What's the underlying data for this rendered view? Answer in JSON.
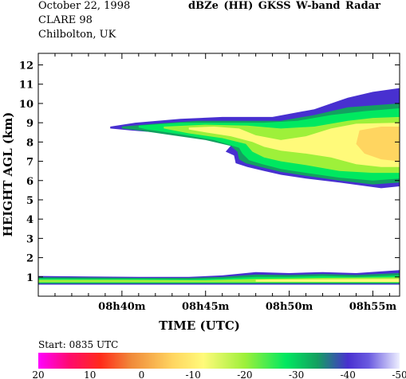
{
  "header": {
    "date": "October 22, 1998",
    "campaign": "CLARE 98",
    "site": "Chilbolton, UK",
    "title": "dBZe (HH)  GKSS  W-band Radar"
  },
  "start_label": "Start: 0835 UTC",
  "chart_data": {
    "type": "heatmap",
    "title": "dBZe (HH)  GKSS  W-band Radar",
    "xlabel": "TIME (UTC)",
    "ylabel": "HEIGHT AGL (km)",
    "x_unit": "minutes",
    "xlim": [
      35.0,
      56.6
    ],
    "ylim": [
      0,
      12.6
    ],
    "x_ticks": [
      {
        "value": 40,
        "label": "08h40m"
      },
      {
        "value": 45,
        "label": "08h45m"
      },
      {
        "value": 50,
        "label": "08h50m"
      },
      {
        "value": 55,
        "label": "08h55m"
      }
    ],
    "y_ticks": [
      1,
      2,
      3,
      4,
      5,
      6,
      7,
      8,
      9,
      10,
      11,
      12
    ],
    "grid": false,
    "colorbar": {
      "ticks": [
        20,
        10,
        0,
        -10,
        -20,
        -30,
        -40,
        -50
      ],
      "range": [
        20,
        -50
      ],
      "stops": [
        {
          "value": 20,
          "color": "#ff00ff"
        },
        {
          "value": 14,
          "color": "#ff0a6e"
        },
        {
          "value": 8,
          "color": "#ff2a1a"
        },
        {
          "value": 2,
          "color": "#f08a3a"
        },
        {
          "value": -6,
          "color": "#ffd560"
        },
        {
          "value": -12,
          "color": "#fffa7a"
        },
        {
          "value": -20,
          "color": "#9ef03a"
        },
        {
          "value": -28,
          "color": "#00e860"
        },
        {
          "value": -34,
          "color": "#13a060"
        },
        {
          "value": -40,
          "color": "#4830d0"
        },
        {
          "value": -44,
          "color": "#6a5ae0"
        },
        {
          "value": -50,
          "color": "#eef0ff"
        }
      ]
    },
    "regions": [
      {
        "name": "upper-cloud",
        "color": "#4830d0",
        "points": [
          [
            39.3,
            8.8
          ],
          [
            40.8,
            9.0
          ],
          [
            43.5,
            9.2
          ],
          [
            46.0,
            9.3
          ],
          [
            49.0,
            9.3
          ],
          [
            51.5,
            9.7
          ],
          [
            53.5,
            10.3
          ],
          [
            55.0,
            10.6
          ],
          [
            56.6,
            10.8
          ],
          [
            56.6,
            5.7
          ],
          [
            55.5,
            5.6
          ],
          [
            53.0,
            5.9
          ],
          [
            51.0,
            6.1
          ],
          [
            49.5,
            6.3
          ],
          [
            48.5,
            6.5
          ],
          [
            47.5,
            6.7
          ],
          [
            46.8,
            6.9
          ],
          [
            46.7,
            7.3
          ],
          [
            46.2,
            7.5
          ],
          [
            46.6,
            7.9
          ],
          [
            46.0,
            8.1
          ],
          [
            44.0,
            8.3
          ],
          [
            42.0,
            8.5
          ],
          [
            40.5,
            8.6
          ],
          [
            39.3,
            8.7
          ]
        ]
      },
      {
        "name": "upper-cloud",
        "color": "#13a060",
        "points": [
          [
            40.0,
            8.8
          ],
          [
            42.0,
            8.95
          ],
          [
            44.5,
            9.1
          ],
          [
            47.0,
            9.1
          ],
          [
            49.5,
            9.1
          ],
          [
            51.5,
            9.4
          ],
          [
            53.5,
            9.8
          ],
          [
            55.0,
            9.9
          ],
          [
            56.6,
            10.0
          ],
          [
            56.6,
            5.9
          ],
          [
            55.0,
            5.8
          ],
          [
            53.0,
            6.0
          ],
          [
            51.0,
            6.25
          ],
          [
            49.5,
            6.45
          ],
          [
            48.3,
            6.7
          ],
          [
            47.4,
            6.9
          ],
          [
            47.0,
            7.1
          ],
          [
            46.9,
            7.5
          ],
          [
            46.5,
            7.8
          ],
          [
            45.0,
            8.1
          ],
          [
            43.0,
            8.35
          ],
          [
            41.0,
            8.6
          ],
          [
            40.0,
            8.7
          ]
        ]
      },
      {
        "name": "upper-cloud",
        "color": "#00e860",
        "points": [
          [
            41.0,
            8.85
          ],
          [
            43.5,
            9.0
          ],
          [
            46.0,
            9.0
          ],
          [
            48.5,
            9.0
          ],
          [
            50.5,
            9.1
          ],
          [
            52.5,
            9.4
          ],
          [
            54.5,
            9.6
          ],
          [
            56.6,
            9.75
          ],
          [
            56.6,
            6.1
          ],
          [
            55.0,
            6.0
          ],
          [
            53.0,
            6.15
          ],
          [
            51.0,
            6.4
          ],
          [
            49.5,
            6.6
          ],
          [
            48.4,
            6.85
          ],
          [
            47.6,
            7.05
          ],
          [
            47.2,
            7.4
          ],
          [
            47.0,
            7.7
          ],
          [
            45.5,
            8.1
          ],
          [
            43.5,
            8.4
          ],
          [
            41.5,
            8.65
          ],
          [
            41.0,
            8.75
          ]
        ]
      },
      {
        "name": "upper-cloud",
        "color": "#9ef03a",
        "points": [
          [
            42.5,
            8.8
          ],
          [
            45.0,
            8.9
          ],
          [
            47.5,
            8.85
          ],
          [
            49.5,
            8.7
          ],
          [
            51.5,
            8.8
          ],
          [
            53.5,
            9.1
          ],
          [
            55.0,
            9.25
          ],
          [
            56.6,
            9.3
          ],
          [
            56.6,
            6.4
          ],
          [
            55.0,
            6.4
          ],
          [
            53.0,
            6.5
          ],
          [
            51.0,
            6.8
          ],
          [
            49.5,
            7.0
          ],
          [
            48.5,
            7.2
          ],
          [
            47.8,
            7.5
          ],
          [
            47.4,
            7.9
          ],
          [
            46.0,
            8.2
          ],
          [
            44.0,
            8.45
          ],
          [
            42.5,
            8.7
          ]
        ]
      },
      {
        "name": "upper-cloud",
        "color": "#fffa7a",
        "points": [
          [
            44.0,
            8.75
          ],
          [
            45.5,
            8.8
          ],
          [
            47.0,
            8.7
          ],
          [
            48.0,
            8.35
          ],
          [
            49.5,
            8.1
          ],
          [
            51.0,
            8.3
          ],
          [
            52.5,
            8.7
          ],
          [
            54.0,
            8.95
          ],
          [
            56.6,
            9.0
          ],
          [
            56.6,
            6.7
          ],
          [
            55.5,
            6.7
          ],
          [
            54.0,
            6.85
          ],
          [
            52.5,
            7.2
          ],
          [
            51.0,
            7.4
          ],
          [
            49.5,
            7.55
          ],
          [
            48.5,
            7.75
          ],
          [
            47.8,
            8.0
          ],
          [
            46.5,
            8.3
          ],
          [
            45.0,
            8.5
          ],
          [
            44.0,
            8.65
          ]
        ]
      },
      {
        "name": "upper-cloud",
        "color": "#ffd560",
        "points": [
          [
            54.2,
            8.6
          ],
          [
            55.5,
            8.8
          ],
          [
            56.6,
            8.8
          ],
          [
            56.6,
            7.0
          ],
          [
            55.5,
            7.1
          ],
          [
            54.5,
            7.4
          ],
          [
            54.0,
            7.9
          ]
        ]
      },
      {
        "name": "lower-layer",
        "color": "#4830d0",
        "points": [
          [
            35.0,
            1.05
          ],
          [
            38.0,
            1.02
          ],
          [
            41.0,
            1.0
          ],
          [
            44.0,
            1.0
          ],
          [
            46.0,
            1.08
          ],
          [
            48.0,
            1.25
          ],
          [
            50.0,
            1.2
          ],
          [
            52.0,
            1.25
          ],
          [
            54.0,
            1.2
          ],
          [
            56.6,
            1.35
          ],
          [
            56.6,
            0.6
          ],
          [
            35.0,
            0.6
          ]
        ]
      },
      {
        "name": "lower-layer",
        "color": "#13a060",
        "points": [
          [
            35.0,
            0.98
          ],
          [
            38.0,
            0.97
          ],
          [
            41.0,
            0.95
          ],
          [
            44.0,
            0.95
          ],
          [
            46.0,
            1.0
          ],
          [
            48.0,
            1.12
          ],
          [
            50.0,
            1.1
          ],
          [
            52.0,
            1.15
          ],
          [
            54.0,
            1.1
          ],
          [
            56.6,
            1.2
          ],
          [
            56.6,
            0.65
          ],
          [
            35.0,
            0.65
          ]
        ]
      },
      {
        "name": "lower-layer",
        "color": "#00e860",
        "points": [
          [
            35.0,
            0.92
          ],
          [
            38.0,
            0.9
          ],
          [
            41.0,
            0.9
          ],
          [
            44.0,
            0.88
          ],
          [
            46.0,
            0.92
          ],
          [
            48.0,
            1.0
          ],
          [
            50.0,
            1.0
          ],
          [
            52.0,
            1.05
          ],
          [
            54.0,
            1.0
          ],
          [
            56.6,
            1.08
          ],
          [
            56.6,
            0.7
          ],
          [
            35.0,
            0.7
          ]
        ]
      },
      {
        "name": "lower-layer",
        "color": "#9ef03a",
        "points": [
          [
            35.0,
            0.85
          ],
          [
            40.0,
            0.85
          ],
          [
            45.0,
            0.83
          ],
          [
            48.0,
            0.9
          ],
          [
            52.0,
            0.95
          ],
          [
            56.6,
            0.98
          ],
          [
            56.6,
            0.72
          ],
          [
            35.0,
            0.72
          ]
        ]
      },
      {
        "name": "lower-layer",
        "color": "#fffa7a",
        "points": [
          [
            48.0,
            0.85
          ],
          [
            52.0,
            0.88
          ],
          [
            56.6,
            0.9
          ],
          [
            56.6,
            0.74
          ],
          [
            48.0,
            0.75
          ]
        ]
      }
    ]
  }
}
